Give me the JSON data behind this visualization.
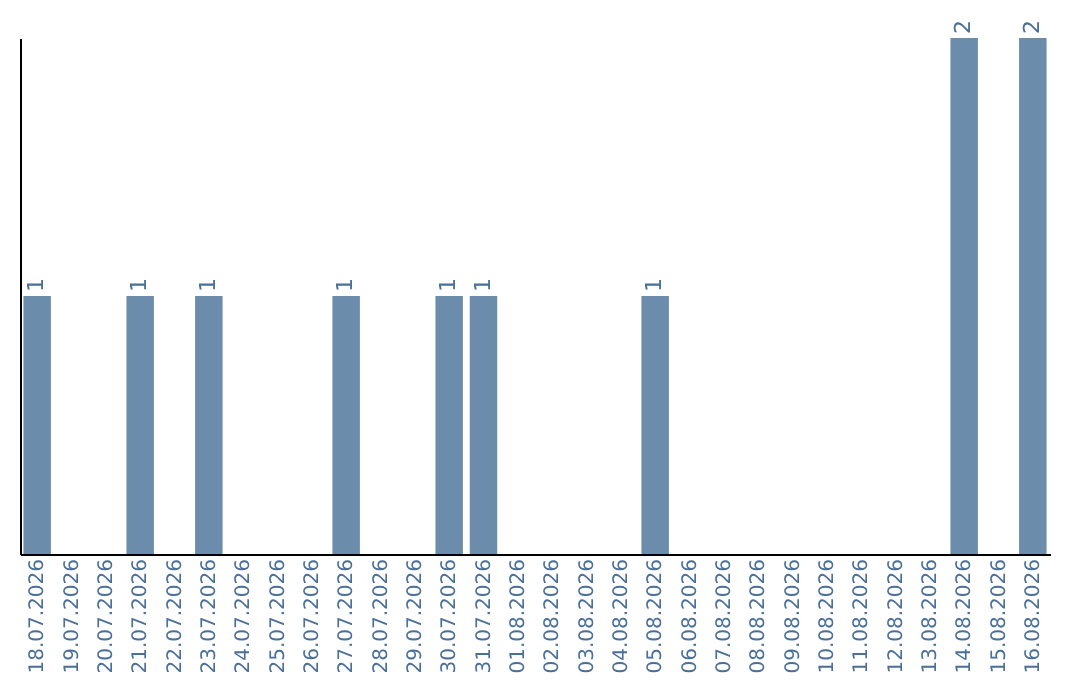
{
  "chart_data": {
    "type": "bar",
    "categories": [
      "18.07.2026",
      "19.07.2026",
      "20.07.2026",
      "21.07.2026",
      "22.07.2026",
      "23.07.2026",
      "24.07.2026",
      "25.07.2026",
      "26.07.2026",
      "27.07.2026",
      "28.07.2026",
      "29.07.2026",
      "30.07.2026",
      "31.07.2026",
      "01.08.2026",
      "02.08.2026",
      "03.08.2026",
      "04.08.2026",
      "05.08.2026",
      "06.08.2026",
      "07.08.2026",
      "08.08.2026",
      "09.08.2026",
      "10.08.2026",
      "11.08.2026",
      "12.08.2026",
      "13.08.2026",
      "14.08.2026",
      "15.08.2026",
      "16.08.2026"
    ],
    "values": [
      1,
      0,
      0,
      1,
      0,
      1,
      0,
      0,
      0,
      1,
      0,
      0,
      1,
      1,
      0,
      0,
      0,
      0,
      1,
      0,
      0,
      0,
      0,
      0,
      0,
      0,
      0,
      2,
      0,
      2
    ],
    "value_labels": [
      "1",
      null,
      null,
      "1",
      null,
      "1",
      null,
      null,
      null,
      "1",
      null,
      null,
      "1",
      "1",
      null,
      null,
      null,
      null,
      "1",
      null,
      null,
      null,
      null,
      null,
      null,
      null,
      null,
      "2",
      null,
      "2"
    ],
    "color": "#6b8cab",
    "grid": false
  }
}
